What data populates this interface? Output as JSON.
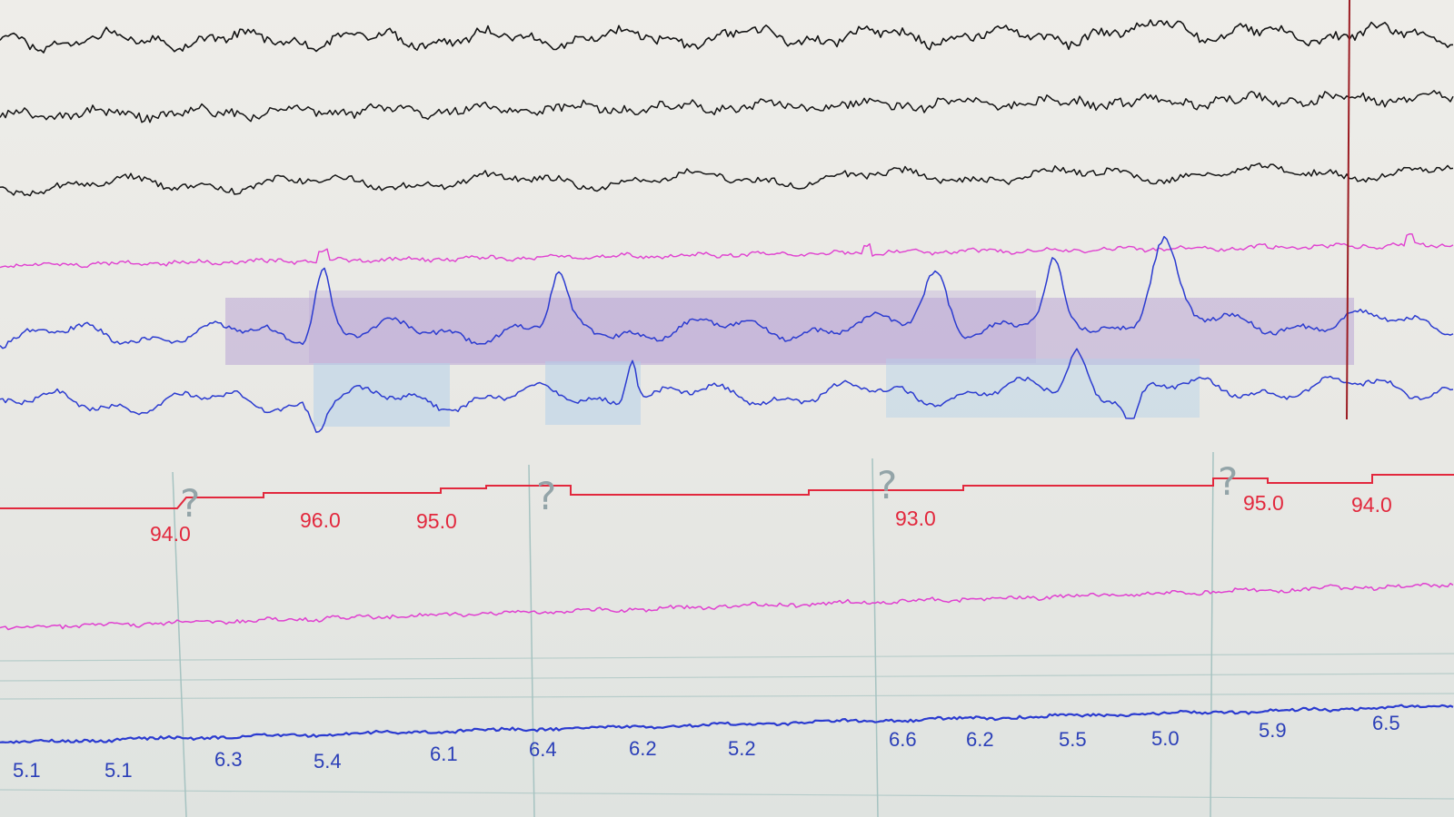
{
  "colors": {
    "eeg": "#151515",
    "emg": "#e040d0",
    "eog": "#2b3bd0",
    "spo2": "#e2283d",
    "numeric": "#2b3fb8",
    "grid": "#a6c3c1",
    "region_purple": "#b9a6d6",
    "region_blue": "#b4d0e9",
    "cursor": "#9b1c22"
  },
  "event_marker": {
    "icon": "question-mark-icon",
    "symbol": "?"
  },
  "spo2_labels": [
    "94.0",
    "96.0",
    "95.0",
    "93.0",
    "95.0",
    "94.0"
  ],
  "numeric_labels": [
    "5.1",
    "5.1",
    "6.3",
    "5.4",
    "6.1",
    "6.4",
    "6.2",
    "5.2",
    "6.6",
    "6.2",
    "5.5",
    "5.0",
    "5.9",
    "6.5"
  ]
}
